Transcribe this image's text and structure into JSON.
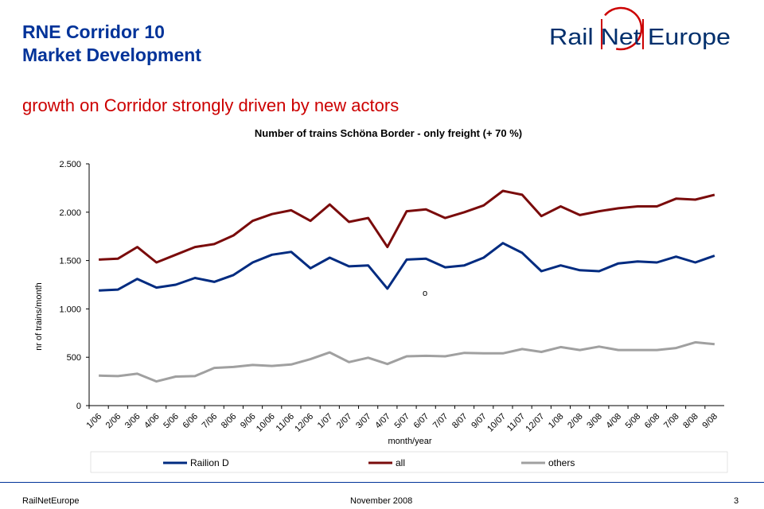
{
  "header": {
    "title_line1": "RNE Corridor 10",
    "title_line2": "Market Development",
    "subtitle": "growth on Corridor strongly driven by new actors",
    "logo_text": "Rail Net Europe"
  },
  "footer": {
    "left": "RailNetEurope",
    "center": "November 2008",
    "page": "3"
  },
  "colors": {
    "railion": "#002b80",
    "all": "#7a0b0b",
    "others": "#a0a0a0",
    "accent": "#003399",
    "subtitle": "#cc0000"
  },
  "chart_data": {
    "type": "line",
    "title": "Number of trains Schöna Border  - only freight (+ 70 %)",
    "xlabel": "month/year",
    "ylabel": "nr of trains/month",
    "ylim": [
      0,
      2500
    ],
    "yticks": [
      {
        "value": 0,
        "label": "0"
      },
      {
        "value": 500,
        "label": "500"
      },
      {
        "value": 1000,
        "label": "1.000"
      },
      {
        "value": 1500,
        "label": "1.500"
      },
      {
        "value": 2000,
        "label": "2.000"
      },
      {
        "value": 2500,
        "label": "2.500"
      }
    ],
    "grid": false,
    "legend_position": "bottom",
    "annotation": "o",
    "categories": [
      "1/06",
      "2/06",
      "3/06",
      "4/06",
      "5/06",
      "6/06",
      "7/06",
      "8/06",
      "9/06",
      "10/06",
      "11/06",
      "12/06",
      "1/07",
      "2/07",
      "3/07",
      "4/07",
      "5/07",
      "6/07",
      "7/07",
      "8/07",
      "9/07",
      "10/07",
      "11/07",
      "12/07",
      "1/08",
      "2/08",
      "3/08",
      "4/08",
      "5/08",
      "6/08",
      "7/08",
      "8/08",
      "9/08"
    ],
    "series": [
      {
        "name": "Railion D",
        "color": "#002b80",
        "values": [
          1190,
          1200,
          1310,
          1220,
          1250,
          1320,
          1280,
          1350,
          1480,
          1560,
          1590,
          1420,
          1530,
          1440,
          1450,
          1210,
          1510,
          1520,
          1430,
          1450,
          1530,
          1680,
          1580,
          1390,
          1450,
          1400,
          1390,
          1470,
          1490,
          1480,
          1540,
          1480,
          1550
        ]
      },
      {
        "name": "all",
        "color": "#7a0b0b",
        "values": [
          1510,
          1520,
          1640,
          1480,
          1560,
          1640,
          1670,
          1760,
          1910,
          1980,
          2020,
          1910,
          2080,
          1900,
          1940,
          1640,
          2010,
          2030,
          1940,
          2000,
          2070,
          2220,
          2180,
          1960,
          2060,
          1970,
          2010,
          2040,
          2060,
          2060,
          2140,
          2130,
          2180
        ]
      },
      {
        "name": "others",
        "color": "#a0a0a0",
        "values": [
          310,
          305,
          330,
          250,
          300,
          305,
          390,
          400,
          420,
          410,
          425,
          480,
          550,
          450,
          495,
          430,
          510,
          515,
          510,
          545,
          540,
          540,
          585,
          555,
          605,
          575,
          610,
          575,
          575,
          575,
          595,
          655,
          635
        ]
      }
    ]
  }
}
